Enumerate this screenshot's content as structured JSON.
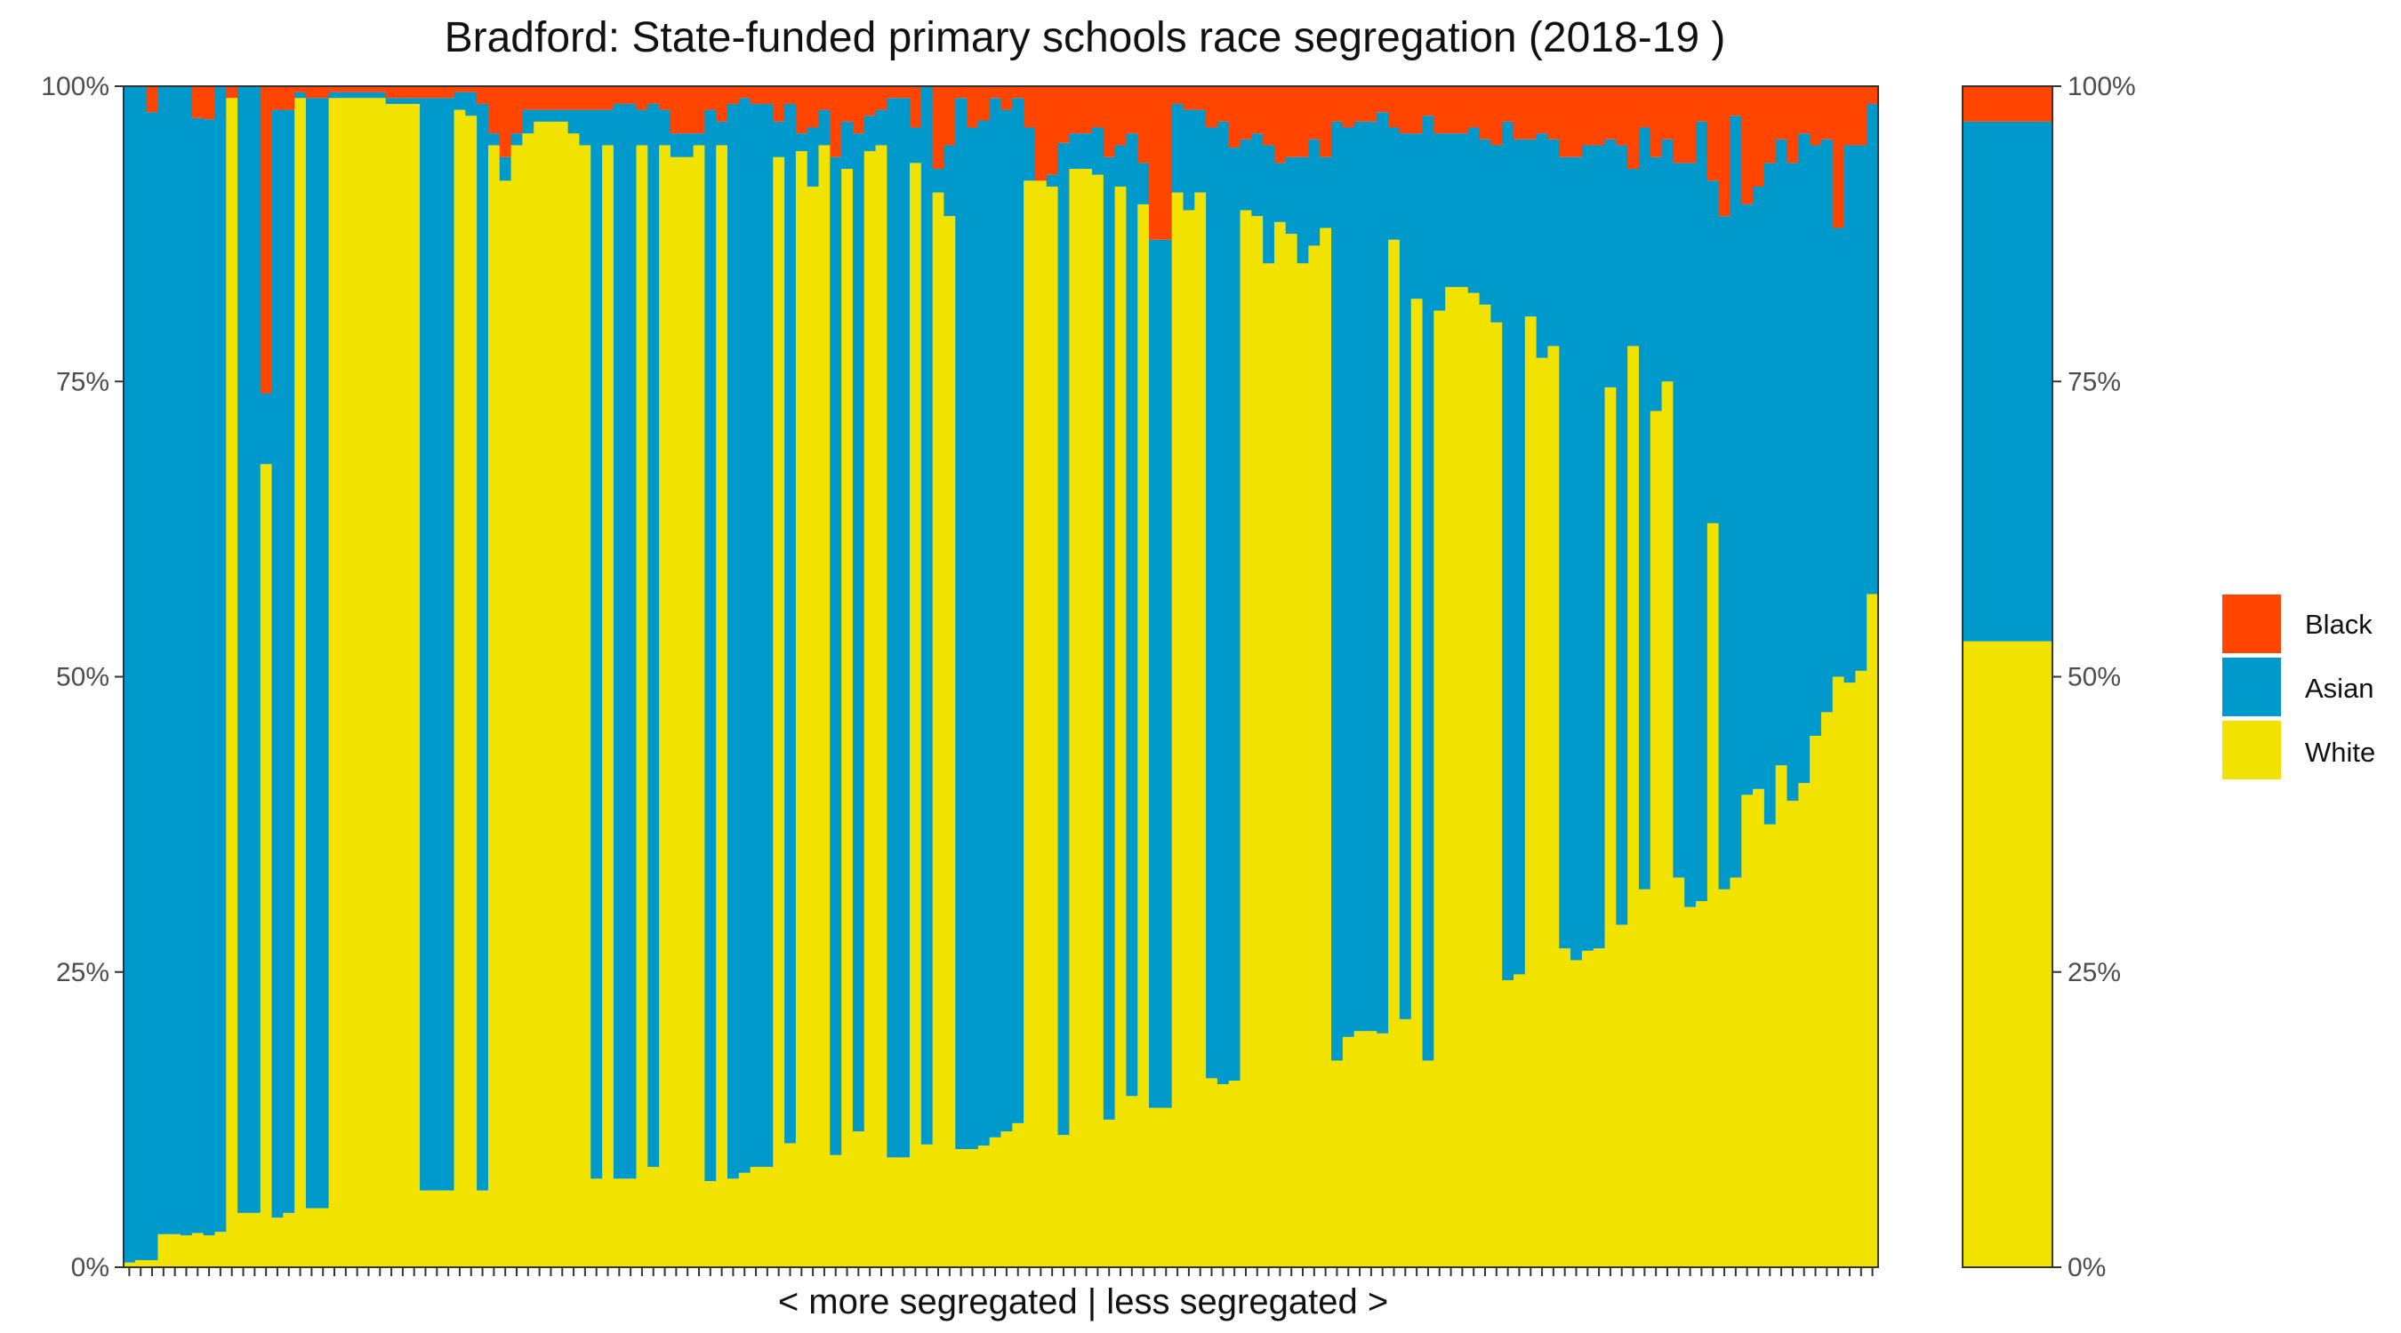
{
  "chart_data": {
    "type": "bar",
    "stacked": true,
    "percent": true,
    "title": "Bradford: State-funded primary schools race segregation (2018-19 )",
    "xlabel": "< more segregated | less segregated >",
    "ylabel": "",
    "ylim": [
      0,
      100
    ],
    "y_ticks": [
      "0%",
      "25%",
      "50%",
      "75%",
      "100%"
    ],
    "legend_position": "right",
    "legend": [
      "Black",
      "Asian",
      "White"
    ],
    "colors": {
      "Black": "#FF4500",
      "Asian": "#0099CC",
      "White": "#F2E200"
    },
    "series_order_bottom_to_top": [
      "White",
      "Asian",
      "Black"
    ],
    "schools_white": [
      0.4,
      0.6,
      0.6,
      2.8,
      2.8,
      2.7,
      2.9,
      2.7,
      3.0,
      99.0,
      4.6,
      4.6,
      68,
      4.2,
      4.6,
      99,
      5,
      5,
      99,
      99,
      99,
      99,
      99,
      98.5,
      98.5,
      98.5,
      6.5,
      6.5,
      6.5,
      98,
      97.5,
      6.5,
      95,
      92,
      95,
      96,
      97,
      97,
      97,
      96,
      95,
      7.5,
      95,
      7.5,
      7.5,
      95,
      8.5,
      95,
      94,
      94,
      95,
      7.3,
      95,
      7.5,
      8,
      8.5,
      8.5,
      94,
      10.5,
      94.5,
      91.5,
      95,
      9.5,
      93,
      11.5,
      94.5,
      95,
      9.3,
      9.3,
      93.5,
      10.4,
      91,
      89,
      10,
      10,
      10.3,
      11,
      11.5,
      12.2,
      92,
      92,
      91.5,
      11.2,
      93,
      93,
      92.5,
      12.5,
      91.5,
      14.5,
      90,
      13.5,
      13.5,
      91,
      89.5,
      91,
      16,
      15.5,
      15.8,
      89.5,
      89,
      85,
      88.5,
      87.5,
      85,
      86.5,
      88,
      17.5,
      19.5,
      20,
      20,
      19.8,
      87,
      21,
      82,
      17.5,
      81,
      83,
      83,
      82.5,
      81.5,
      80,
      24.3,
      24.8,
      80.5,
      77,
      78,
      27,
      26,
      26.8,
      27,
      74.5,
      29,
      78,
      32,
      72.5,
      75,
      33,
      30.5,
      31,
      63,
      32,
      33,
      40,
      40.5,
      37.5,
      42.5,
      39.5,
      41,
      45,
      47,
      50,
      49.5,
      50.5,
      57
    ],
    "schools_asian": [
      99.6,
      99.4,
      97.2,
      97.2,
      97.2,
      97.3,
      94.4,
      94.5,
      97.0,
      0,
      95.4,
      95.4,
      6,
      93.8,
      93.4,
      0.5,
      94,
      94,
      0.5,
      0.5,
      0.5,
      0.5,
      0.5,
      0.5,
      0.5,
      0.5,
      92.5,
      92.5,
      92.5,
      1.5,
      2,
      92,
      1,
      2,
      1,
      2,
      1,
      1,
      1,
      2,
      3,
      90.5,
      3,
      91,
      91,
      3,
      90,
      3,
      2,
      2,
      1,
      90.7,
      2,
      91,
      91,
      90,
      90,
      3,
      88,
      1.5,
      5,
      3,
      84.5,
      4,
      84.5,
      3,
      3,
      89.7,
      89.7,
      3,
      89.6,
      2,
      6,
      89,
      86.5,
      86.8,
      88,
      86.5,
      86.8,
      4.5,
      0,
      1,
      84,
      3,
      3,
      4,
      81.5,
      3.5,
      81.5,
      3.5,
      73.5,
      73.5,
      7.5,
      8.5,
      7,
      80.5,
      81.5,
      79,
      6,
      7,
      10,
      5,
      6.5,
      9,
      9,
      6,
      79.5,
      77,
      77,
      77,
      78,
      9.5,
      75,
      14,
      80,
      15,
      13,
      13,
      14,
      14,
      15,
      72.7,
      70.7,
      15,
      19,
      17.5,
      67,
      68,
      68.2,
      68,
      21,
      66,
      15,
      64.5,
      21.5,
      20.5,
      60.5,
      63,
      66,
      29,
      57,
      64.5,
      50,
      51,
      56,
      53,
      54,
      55,
      50,
      48.5,
      38,
      45.5,
      44.5,
      41.5
    ]
  },
  "summary_bar": {
    "White": 53,
    "Asian": 44,
    "Black": 3
  },
  "right_axis_ticks": [
    "0%",
    "25%",
    "50%",
    "75%",
    "100%"
  ]
}
